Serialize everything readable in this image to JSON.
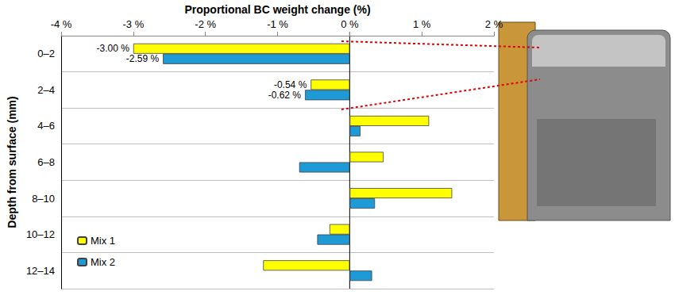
{
  "chart_data": {
    "type": "bar",
    "orientation": "horizontal",
    "xlabel": "Proportional BC weight change (%)",
    "ylabel": "Depth from surface (mm)",
    "categories": [
      "0–2",
      "2–4",
      "4–6",
      "6–8",
      "8–10",
      "10–12",
      "12–14"
    ],
    "series": [
      {
        "name": "Mix 1",
        "color": "#ffff00",
        "values": [
          -3.0,
          -0.54,
          1.1,
          0.47,
          1.42,
          -0.28,
          -1.2
        ],
        "value_labels": [
          "-3.00 %",
          "-0.54 %",
          null,
          null,
          null,
          null,
          null
        ]
      },
      {
        "name": "Mix 2",
        "color": "#1e9ad6",
        "values": [
          -2.59,
          -0.62,
          0.15,
          -0.7,
          0.35,
          -0.45,
          0.31
        ],
        "value_labels": [
          "-2.59 %",
          "-0.62 %",
          null,
          null,
          null,
          null,
          null
        ]
      }
    ],
    "xlim": [
      -4,
      2
    ],
    "xticks": [
      {
        "value": -4,
        "label": "-4 %"
      },
      {
        "value": -3,
        "label": "-3 %"
      },
      {
        "value": -2,
        "label": "-2 %"
      },
      {
        "value": -1,
        "label": "-1 %"
      },
      {
        "value": 0,
        "label": "0 %"
      },
      {
        "value": 1,
        "label": "1 %"
      },
      {
        "value": 2,
        "label": "2 %"
      }
    ],
    "data_labels": true,
    "grid": true,
    "legend": "lower left"
  }
}
